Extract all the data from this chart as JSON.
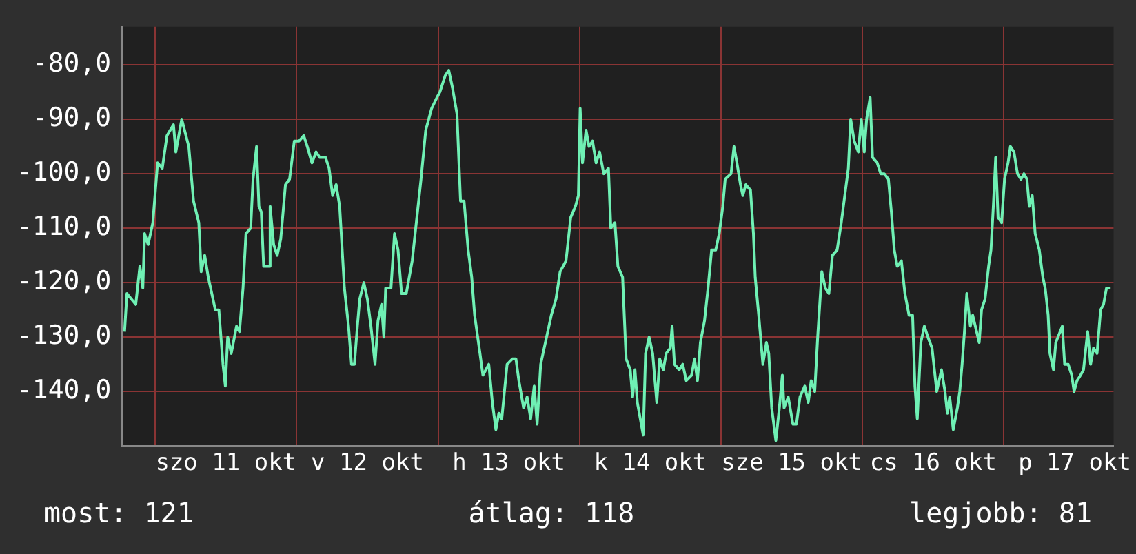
{
  "chart_data": {
    "type": "line",
    "marker": "none",
    "grid": true,
    "xlim": [
      "--10-10T18:24",
      "--10-17T18:36"
    ],
    "xticks": [
      {
        "value": "--10-11T00:00",
        "label": null
      },
      {
        "value": "--10-11T12:00",
        "label": "szo 11 okt"
      },
      {
        "value": "--10-12T00:00",
        "label": null
      },
      {
        "value": "--10-12T12:00",
        "label": "v 12 okt"
      },
      {
        "value": "--10-13T00:00",
        "label": null
      },
      {
        "value": "--10-13T12:00",
        "label": "h 13 okt"
      },
      {
        "value": "--10-14T00:00",
        "label": null
      },
      {
        "value": "--10-14T12:00",
        "label": "k 14 okt"
      },
      {
        "value": "--10-15T00:00",
        "label": null
      },
      {
        "value": "--10-15T12:00",
        "label": "sze 15 okt"
      },
      {
        "value": "--10-16T00:00",
        "label": null
      },
      {
        "value": "--10-16T12:00",
        "label": "cs 16 okt"
      },
      {
        "value": "--10-17T00:00",
        "label": null
      },
      {
        "value": "--10-17T12:00",
        "label": "p 17 okt"
      }
    ],
    "ylim": [
      -150,
      -73
    ],
    "yticks": [
      {
        "value": -140,
        "label": "-140,0"
      },
      {
        "value": -130,
        "label": "-130,0"
      },
      {
        "value": -120,
        "label": "-120,0"
      },
      {
        "value": -110,
        "label": "-110,0"
      },
      {
        "value": -100,
        "label": "-100,0"
      },
      {
        "value": -90,
        "label": "-90,0"
      },
      {
        "value": -80,
        "label": "-80,0"
      }
    ],
    "annotations": [
      "most: 121",
      "átlag: 118",
      "legjobb: 81"
    ],
    "series": [
      {
        "color": "#6ff0b4",
        "x": [
          "--10-10T18:48",
          "--10-10T19:12",
          "--10-10T20:42",
          "--10-10T21:24",
          "--10-10T21:54",
          "--10-10T22:12",
          "--10-10T22:48",
          "--10-10T23:36",
          "--10-11T00:24",
          "--10-11T01:12",
          "--10-11T02:00",
          "--10-11T03:06",
          "--10-11T03:30",
          "--10-11T04:30",
          "--10-11T05:42",
          "--10-11T06:30",
          "--10-11T07:24",
          "--10-11T07:48",
          "--10-11T08:24",
          "--10-11T09:00",
          "--10-11T10:12",
          "--10-11T10:48",
          "--10-11T11:30",
          "--10-11T11:54",
          "--10-11T12:18",
          "--10-11T12:54",
          "--10-11T13:48",
          "--10-11T14:18",
          "--10-11T14:54",
          "--10-11T15:24",
          "--10-11T16:12",
          "--10-11T16:36",
          "--10-11T17:12",
          "--10-11T17:36",
          "--10-11T18:00",
          "--10-11T18:24",
          "--10-11T19:18",
          "--10-11T19:30",
          "--10-11T20:06",
          "--10-11T20:42",
          "--10-11T21:18",
          "--10-11T22:06",
          "--10-11T22:48",
          "--10-11T23:36",
          "--10-12T00:24",
          "--10-12T01:12",
          "--10-12T01:48",
          "--10-12T02:36",
          "--10-12T03:18",
          "--10-12T03:54",
          "--10-12T04:54",
          "--10-12T05:30",
          "--10-12T06:06",
          "--10-12T06:42",
          "--10-12T07:18",
          "--10-12T08:06",
          "--10-12T08:48",
          "--10-12T09:18",
          "--10-12T09:48",
          "--10-12T10:18",
          "--10-12T10:42",
          "--10-12T11:24",
          "--10-12T12:00",
          "--10-12T12:36",
          "--10-12T13:18",
          "--10-12T13:48",
          "--10-12T14:24",
          "--10-12T14:48",
          "--10-12T15:06",
          "--10-12T16:00",
          "--10-12T16:36",
          "--10-12T17:12",
          "--10-12T17:48",
          "--10-12T18:36",
          "--10-12T19:36",
          "--10-12T20:18",
          "--10-12T21:06",
          "--10-12T21:54",
          "--10-12T22:54",
          "--10-12T23:48",
          "--10-13T00:18",
          "--10-13T01:12",
          "--10-13T01:48",
          "--10-13T02:24",
          "--10-13T03:12",
          "--10-13T03:48",
          "--10-13T04:24",
          "--10-13T05:06",
          "--10-13T05:42",
          "--10-13T06:12",
          "--10-13T07:06",
          "--10-13T07:36",
          "--10-13T08:36",
          "--10-13T09:12",
          "--10-13T09:48",
          "--10-13T10:18",
          "--10-13T10:48",
          "--10-13T11:42",
          "--10-13T12:36",
          "--10-13T13:12",
          "--10-13T13:42",
          "--10-13T14:30",
          "--10-13T15:06",
          "--10-13T15:42",
          "--10-13T16:18",
          "--10-13T16:48",
          "--10-13T17:24",
          "--10-13T18:12",
          "--10-13T19:12",
          "--10-13T20:00",
          "--10-13T20:42",
          "--10-13T21:42",
          "--10-13T22:30",
          "--10-13T23:18",
          "--10-13T23:48",
          "--10-14T00:06",
          "--10-14T00:30",
          "--10-14T01:06",
          "--10-14T01:36",
          "--10-14T02:12",
          "--10-14T02:48",
          "--10-14T03:24",
          "--10-14T04:06",
          "--10-14T04:54",
          "--10-14T05:18",
          "--10-14T06:00",
          "--10-14T06:30",
          "--10-14T07:18",
          "--10-14T07:54",
          "--10-14T08:36",
          "--10-14T09:00",
          "--10-14T09:24",
          "--10-14T09:48",
          "--10-14T10:48",
          "--10-14T11:12",
          "--10-14T11:48",
          "--10-14T12:24",
          "--10-14T13:06",
          "--10-14T13:36",
          "--10-14T14:12",
          "--10-14T14:42",
          "--10-14T15:24",
          "--10-14T15:42",
          "--10-14T16:06",
          "--10-14T16:54",
          "--10-14T17:30",
          "--10-14T18:06",
          "--10-14T19:00",
          "--10-14T19:30",
          "--10-14T20:00",
          "--10-14T20:30",
          "--10-14T21:12",
          "--10-14T21:48",
          "--10-14T22:24",
          "--10-14T23:06",
          "--10-14T23:42",
          "--10-15T00:18",
          "--10-15T00:42",
          "--10-15T01:42",
          "--10-15T02:12",
          "--10-15T02:42",
          "--10-15T03:18",
          "--10-15T03:42",
          "--10-15T04:12",
          "--10-15T05:00",
          "--10-15T05:30",
          "--10-15T05:48",
          "--10-15T06:24",
          "--10-15T07:06",
          "--10-15T07:42",
          "--10-15T08:06",
          "--10-15T08:36",
          "--10-15T09:18",
          "--10-15T09:54",
          "--10-15T10:24",
          "--10-15T10:42",
          "--10-15T11:24",
          "--10-15T12:12",
          "--10-15T12:48",
          "--10-15T13:24",
          "--10-15T14:12",
          "--10-15T14:48",
          "--10-15T15:18",
          "--10-15T15:54",
          "--10-15T16:24",
          "--10-15T17:06",
          "--10-15T17:42",
          "--10-15T18:18",
          "--10-15T18:54",
          "--10-15T19:42",
          "--10-15T20:24",
          "--10-15T21:00",
          "--10-15T21:36",
          "--10-15T22:00",
          "--10-15T22:36",
          "--10-15T23:18",
          "--10-15T23:48",
          "--10-16T00:18",
          "--10-16T00:42",
          "--10-16T01:18",
          "--10-16T01:42",
          "--10-16T02:30",
          "--10-16T03:06",
          "--10-16T03:42",
          "--10-16T04:24",
          "--10-16T04:54",
          "--10-16T05:24",
          "--10-16T05:54",
          "--10-16T06:36",
          "--10-16T07:12",
          "--10-16T07:54",
          "--10-16T08:30",
          "--10-16T08:54",
          "--10-16T09:18",
          "--10-16T09:54",
          "--10-16T10:30",
          "--10-16T11:06",
          "--10-16T11:48",
          "--10-16T12:12",
          "--10-16T12:36",
          "--10-16T13:24",
          "--10-16T14:00",
          "--10-16T14:24",
          "--10-16T14:48",
          "--10-16T15:24",
          "--10-16T16:06",
          "--10-16T16:30",
          "--10-16T16:54",
          "--10-16T17:18",
          "--10-16T17:42",
          "--10-16T18:18",
          "--10-16T18:42",
          "--10-16T19:48",
          "--10-16T20:12",
          "--10-16T20:48",
          "--10-16T21:24",
          "--10-16T21:48",
          "--10-16T22:12",
          "--10-16T22:36",
          "--10-16T23:00",
          "--10-16T23:36",
          "--10-17T00:06",
          "--10-17T00:42",
          "--10-17T01:06",
          "--10-17T01:42",
          "--10-17T02:18",
          "--10-17T02:54",
          "--10-17T03:24",
          "--10-17T03:54",
          "--10-17T04:18",
          "--10-17T04:48",
          "--10-17T05:18",
          "--10-17T06:00",
          "--10-17T06:36",
          "--10-17T07:00",
          "--10-17T07:30",
          "--10-17T07:48",
          "--10-17T08:24",
          "--10-17T08:48",
          "--10-17T09:54",
          "--10-17T10:18",
          "--10-17T10:54",
          "--10-17T11:30",
          "--10-17T11:54",
          "--10-17T12:24",
          "--10-17T13:00",
          "--10-17T13:30",
          "--10-17T14:12",
          "--10-17T14:42",
          "--10-17T15:12",
          "--10-17T15:48",
          "--10-17T16:24",
          "--10-17T16:54",
          "--10-17T17:24",
          "--10-17T18:06"
        ],
        "values": [
          -129,
          -122,
          -124,
          -117,
          -121,
          -111,
          -113,
          -109,
          -98,
          -99,
          -93,
          -91,
          -96,
          -90,
          -95,
          -105,
          -109,
          -118,
          -115,
          -119,
          -125,
          -125,
          -135,
          -139,
          -130,
          -133,
          -128,
          -129,
          -121,
          -111,
          -110,
          -101,
          -95,
          -106,
          -107,
          -117,
          -117,
          -106,
          -113,
          -115,
          -112,
          -102,
          -101,
          -94,
          -94,
          -93,
          -95,
          -98,
          -96,
          -97,
          -97,
          -99,
          -104,
          -102,
          -106,
          -121,
          -128,
          -135,
          -135,
          -128,
          -123,
          -120,
          -123,
          -128,
          -135,
          -127,
          -124,
          -130,
          -121,
          -121,
          -111,
          -114,
          -122,
          -122,
          -116,
          -109,
          -101,
          -92,
          -88,
          -86,
          -85,
          -82,
          -81,
          -84,
          -89,
          -105,
          -105,
          -114,
          -119,
          -126,
          -133,
          -137,
          -135,
          -142,
          -147,
          -144,
          -145,
          -135,
          -134,
          -134,
          -138,
          -143,
          -141,
          -145,
          -139,
          -146,
          -135,
          -131,
          -126,
          -123,
          -118,
          -116,
          -108,
          -106,
          -104,
          -88,
          -98,
          -92,
          -95,
          -94,
          -98,
          -96,
          -100,
          -99,
          -110,
          -109,
          -117,
          -119,
          -134,
          -136,
          -141,
          -136,
          -142,
          -148,
          -133,
          -130,
          -133,
          -142,
          -134,
          -136,
          -133,
          -132,
          -128,
          -135,
          -136,
          -135,
          -138,
          -137,
          -134,
          -138,
          -131,
          -127,
          -121,
          -114,
          -114,
          -111,
          -106,
          -101,
          -100,
          -95,
          -98,
          -102,
          -104,
          -102,
          -103,
          -111,
          -119,
          -126,
          -135,
          -131,
          -133,
          -143,
          -149,
          -143,
          -137,
          -143,
          -141,
          -146,
          -146,
          -141,
          -139,
          -142,
          -138,
          -140,
          -130,
          -118,
          -121,
          -122,
          -115,
          -114,
          -109,
          -104,
          -99,
          -90,
          -94,
          -96,
          -90,
          -96,
          -90,
          -86,
          -97,
          -98,
          -100,
          -100,
          -101,
          -107,
          -114,
          -117,
          -116,
          -122,
          -126,
          -126,
          -139,
          -145,
          -131,
          -128,
          -130,
          -132,
          -136,
          -140,
          -136,
          -140,
          -144,
          -141,
          -147,
          -143,
          -140,
          -135,
          -129,
          -122,
          -128,
          -126,
          -131,
          -125,
          -123,
          -117,
          -114,
          -106,
          -97,
          -108,
          -109,
          -101,
          -98,
          -95,
          -96,
          -100,
          -101,
          -100,
          -101,
          -106,
          -104,
          -111,
          -114,
          -119,
          -121,
          -126,
          -133,
          -136,
          -131,
          -128,
          -135,
          -135,
          -137,
          -140,
          -138,
          -137,
          -136,
          -129,
          -135,
          -132,
          -133,
          -125,
          -124,
          -121,
          -121
        ]
      }
    ]
  }
}
